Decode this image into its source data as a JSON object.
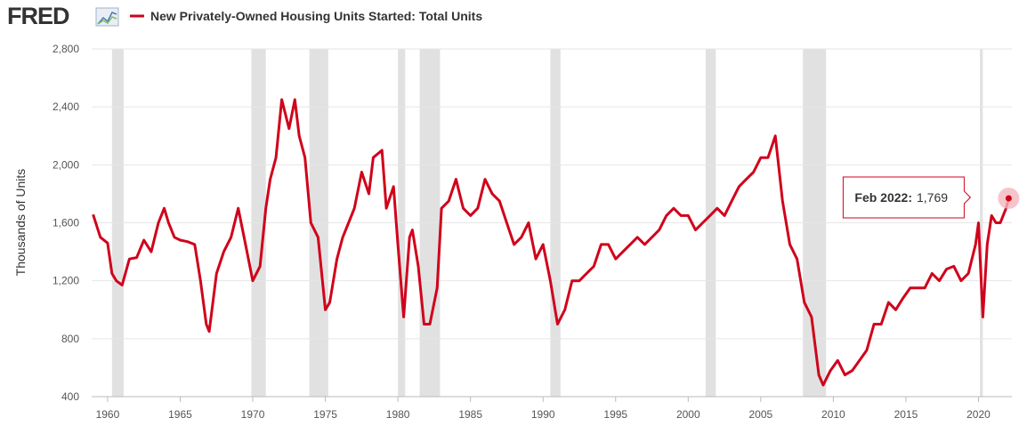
{
  "header": {
    "logo": "FRED"
  },
  "chart_data": {
    "type": "line",
    "y_label": "Thousands of Units",
    "x": [
      1959.0,
      1959.5,
      1960.0,
      1960.3,
      1960.6,
      1961.0,
      1961.5,
      1962.0,
      1962.5,
      1963.0,
      1963.5,
      1963.9,
      1964.2,
      1964.6,
      1965.0,
      1965.5,
      1966.0,
      1966.4,
      1966.8,
      1967.0,
      1967.5,
      1968.0,
      1968.5,
      1969.0,
      1969.5,
      1970.0,
      1970.5,
      1970.9,
      1971.2,
      1971.6,
      1972.0,
      1972.5,
      1972.9,
      1973.2,
      1973.6,
      1974.0,
      1974.5,
      1975.0,
      1975.3,
      1975.8,
      1976.2,
      1976.6,
      1977.0,
      1977.5,
      1978.0,
      1978.3,
      1978.9,
      1979.2,
      1979.7,
      1980.0,
      1980.4,
      1980.8,
      1981.0,
      1981.4,
      1981.8,
      1982.2,
      1982.7,
      1983.0,
      1983.5,
      1984.0,
      1984.5,
      1985.0,
      1985.5,
      1986.0,
      1986.5,
      1987.0,
      1987.5,
      1988.0,
      1988.5,
      1989.0,
      1989.5,
      1990.0,
      1990.5,
      1991.0,
      1991.5,
      1992.0,
      1992.5,
      1993.0,
      1993.5,
      1994.0,
      1994.5,
      1995.0,
      1995.5,
      1996.0,
      1996.5,
      1997.0,
      1997.5,
      1998.0,
      1998.5,
      1999.0,
      1999.5,
      2000.0,
      2000.5,
      2001.0,
      2001.5,
      2002.0,
      2002.5,
      2003.0,
      2003.5,
      2004.0,
      2004.5,
      2005.0,
      2005.5,
      2006.0,
      2006.5,
      2007.0,
      2007.5,
      2008.0,
      2008.5,
      2009.0,
      2009.3,
      2009.8,
      2010.3,
      2010.8,
      2011.3,
      2011.8,
      2012.3,
      2012.8,
      2013.3,
      2013.8,
      2014.3,
      2014.8,
      2015.3,
      2015.8,
      2016.3,
      2016.8,
      2017.3,
      2017.8,
      2018.3,
      2018.8,
      2019.3,
      2019.8,
      2020.0,
      2020.3,
      2020.6,
      2020.9,
      2021.2,
      2021.5,
      2021.9,
      2022.08
    ],
    "series": [
      {
        "name": "New Privately-Owned Housing Units Started: Total Units",
        "color": "#d0021b",
        "values": [
          1657,
          1500,
          1460,
          1250,
          1200,
          1170,
          1350,
          1360,
          1480,
          1400,
          1600,
          1700,
          1600,
          1500,
          1480,
          1470,
          1450,
          1200,
          900,
          850,
          1250,
          1400,
          1500,
          1700,
          1450,
          1200,
          1300,
          1700,
          1900,
          2050,
          2450,
          2250,
          2450,
          2200,
          2050,
          1600,
          1500,
          1000,
          1050,
          1350,
          1500,
          1600,
          1700,
          1950,
          1800,
          2050,
          2100,
          1700,
          1850,
          1450,
          950,
          1500,
          1550,
          1300,
          900,
          900,
          1150,
          1700,
          1750,
          1900,
          1700,
          1650,
          1700,
          1900,
          1800,
          1750,
          1600,
          1450,
          1500,
          1600,
          1350,
          1450,
          1200,
          900,
          1000,
          1200,
          1200,
          1250,
          1300,
          1450,
          1450,
          1350,
          1400,
          1450,
          1500,
          1450,
          1500,
          1550,
          1650,
          1700,
          1650,
          1650,
          1550,
          1600,
          1650,
          1700,
          1650,
          1750,
          1850,
          1900,
          1950,
          2050,
          2050,
          2200,
          1750,
          1450,
          1350,
          1050,
          950,
          550,
          480,
          580,
          650,
          550,
          580,
          650,
          720,
          900,
          900,
          1050,
          1000,
          1080,
          1150,
          1150,
          1150,
          1250,
          1200,
          1280,
          1300,
          1200,
          1250,
          1450,
          1600,
          950,
          1450,
          1650,
          1600,
          1600,
          1700,
          1769
        ]
      }
    ],
    "recessions": [
      [
        1960.3,
        1961.1
      ],
      [
        1969.9,
        1970.9
      ],
      [
        1973.9,
        1975.2
      ],
      [
        1980.0,
        1980.5
      ],
      [
        1981.5,
        1982.9
      ],
      [
        1990.5,
        1991.2
      ],
      [
        2001.2,
        2001.9
      ],
      [
        2007.9,
        2009.5
      ],
      [
        2020.1,
        2020.3
      ]
    ],
    "recession_color": "#e1e1e1",
    "xlim": [
      1958.9,
      2022.3
    ],
    "xticks": [
      1960,
      1965,
      1970,
      1975,
      1980,
      1985,
      1990,
      1995,
      2000,
      2005,
      2010,
      2015,
      2020
    ],
    "ylim": [
      400,
      2800
    ],
    "yticks": [
      {
        "value": 400,
        "label": "400"
      },
      {
        "value": 800,
        "label": "800"
      },
      {
        "value": 1200,
        "label": "1,200"
      },
      {
        "value": 1600,
        "label": "1,600"
      },
      {
        "value": 2000,
        "label": "2,000"
      },
      {
        "value": 2400,
        "label": "2,400"
      },
      {
        "value": 2800,
        "label": "2,800"
      }
    ],
    "grid": true,
    "tooltip": {
      "label": "Feb 2022:",
      "value": 1769,
      "value_label": "1,769"
    }
  }
}
